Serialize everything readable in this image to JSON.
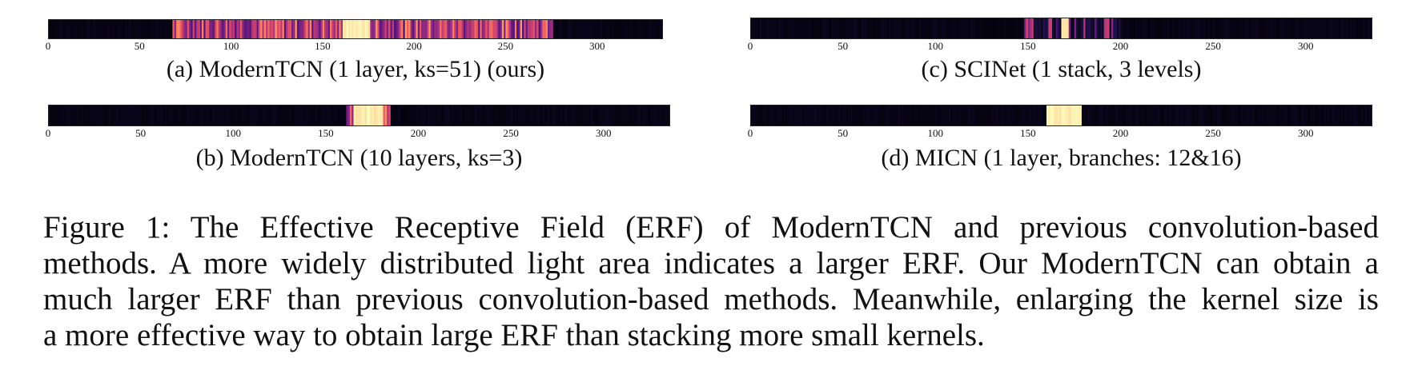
{
  "panels": [
    {
      "id": "a",
      "caption": "(a) ModernTCN (1 layer, ks=51) (ours)",
      "x_ticks": [
        "0",
        "50",
        "100",
        "150",
        "200",
        "250",
        "300"
      ],
      "x_domain": [
        0,
        336
      ],
      "light_band": [
        68,
        276
      ],
      "peak_band": [
        161,
        176
      ],
      "colormap": "magma",
      "seed": 7
    },
    {
      "id": "b",
      "caption": "(b) ModernTCN (10 layers, ks=3)",
      "x_ticks": [
        "0",
        "50",
        "100",
        "150",
        "200",
        "250",
        "300"
      ],
      "x_domain": [
        0,
        336
      ],
      "light_band": [
        161,
        185
      ],
      "peak_band": [
        165,
        181
      ],
      "colormap": "magma",
      "seed": 11
    },
    {
      "id": "c",
      "caption": "(c) SCINet (1 stack, 3 levels)",
      "x_ticks": [
        "0",
        "50",
        "100",
        "150",
        "200",
        "250",
        "300"
      ],
      "x_domain": [
        0,
        336
      ],
      "light_band": [
        148,
        200
      ],
      "peak_band": [
        168,
        172
      ],
      "colormap": "magma",
      "seed": 3
    },
    {
      "id": "d",
      "caption": "(d) MICN (1 layer, branches: 12&16)",
      "x_ticks": [
        "0",
        "50",
        "100",
        "150",
        "200",
        "250",
        "300"
      ],
      "x_domain": [
        0,
        336
      ],
      "light_band": [
        160,
        179
      ],
      "peak_band": [
        160,
        179
      ],
      "colormap": "magma",
      "seed": 5
    }
  ],
  "figure_caption": {
    "lines": [
      "Figure 1: The Effective Receptive Field (ERF) of ModernTCN and previous convolution-based",
      "methods. A more widely distributed light area indicates a larger ERF. Our ModernTCN can obtain a",
      "much larger ERF than previous convolution-based methods. Meanwhile, enlarging the kernel size is",
      "a more effective way to obtain large ERF than stacking more small kernels."
    ]
  }
}
